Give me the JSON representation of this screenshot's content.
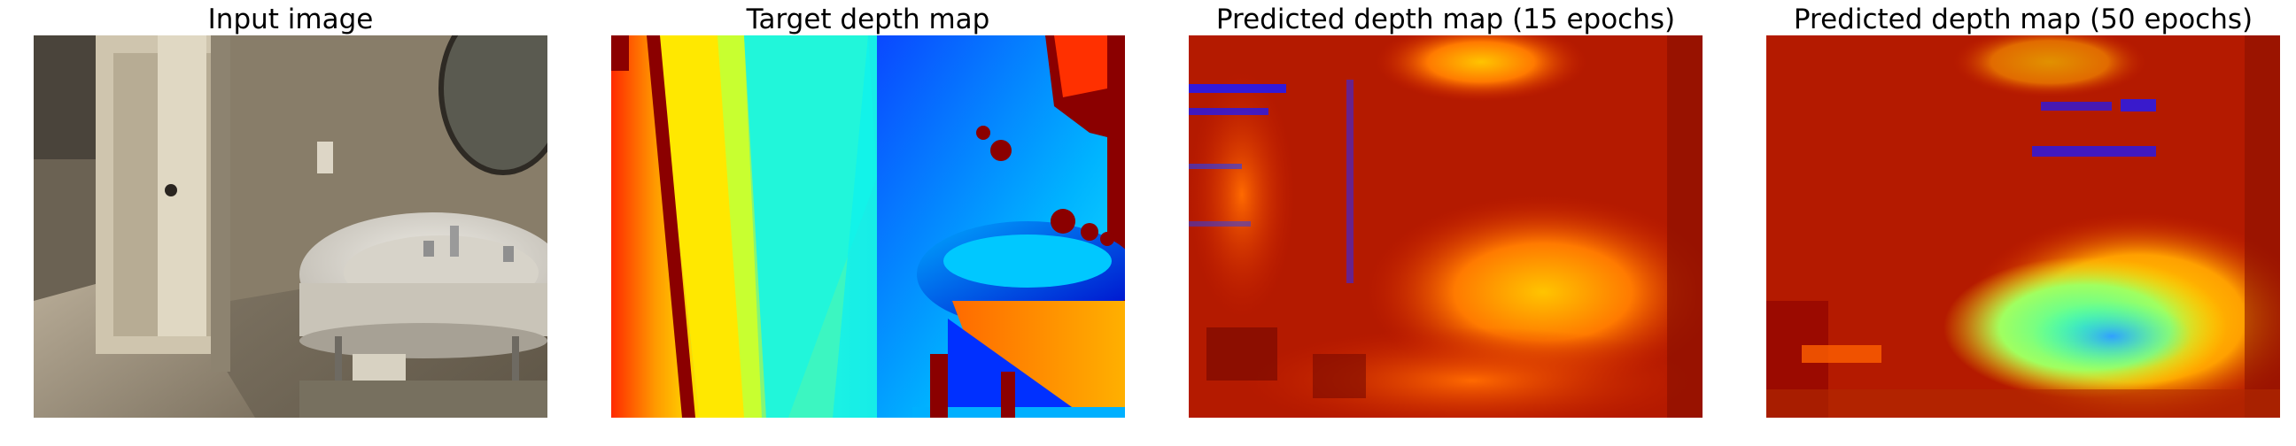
{
  "panels": [
    {
      "title": "Input image"
    },
    {
      "title": "Target depth map"
    },
    {
      "title": "Predicted depth map (15 epochs)"
    },
    {
      "title": "Predicted depth map (50 epochs)"
    }
  ],
  "colors": {
    "background": "#ffffff",
    "jet_near": "#00008f",
    "jet_far": "#8b0000",
    "invalid": "#8b0000"
  }
}
